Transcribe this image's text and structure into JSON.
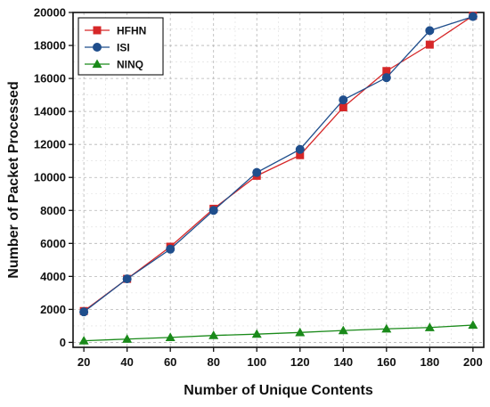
{
  "chart_data": {
    "type": "line",
    "xlabel": "Number of Unique Contents",
    "ylabel": "Number of Packet Processed",
    "x": [
      20,
      40,
      60,
      80,
      100,
      120,
      140,
      160,
      180,
      200
    ],
    "xlim": [
      15,
      205
    ],
    "ylim": [
      -300,
      20000
    ],
    "xticks": [
      20,
      40,
      60,
      80,
      100,
      120,
      140,
      160,
      180,
      200
    ],
    "yticks": [
      0,
      2000,
      4000,
      6000,
      8000,
      10000,
      12000,
      14000,
      16000,
      18000,
      20000
    ],
    "grid": true,
    "legend_position": "top-left",
    "series": [
      {
        "name": "HFHN",
        "color": "#d62728",
        "marker": "square",
        "values": [
          1900,
          3850,
          5800,
          8100,
          10100,
          11350,
          14250,
          16450,
          18050,
          19800
        ]
      },
      {
        "name": "ISI",
        "color": "#1f4e8c",
        "marker": "circle",
        "values": [
          1850,
          3850,
          5650,
          8000,
          10300,
          11700,
          14700,
          16050,
          18900,
          19750
        ]
      },
      {
        "name": "NINQ",
        "color": "#1a8a1a",
        "marker": "triangle",
        "values": [
          100,
          200,
          300,
          420,
          500,
          600,
          720,
          820,
          900,
          1050
        ]
      }
    ]
  }
}
